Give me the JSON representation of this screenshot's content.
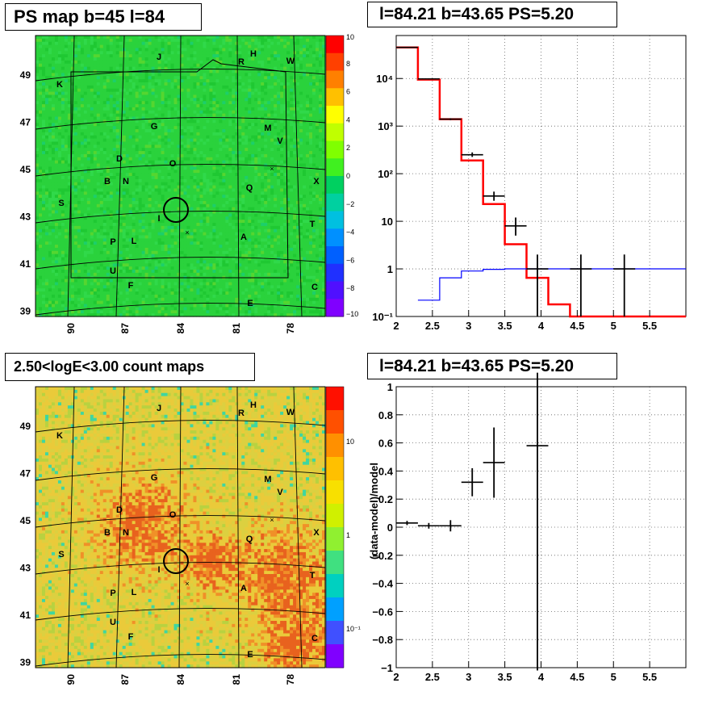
{
  "panels": {
    "ps_map": {
      "title": "PS map b=45 l=84"
    },
    "spectrum": {
      "title": "l=84.21 b=43.65 PS=5.20"
    },
    "count_map": {
      "title": "2.50<logE<3.00 count maps"
    },
    "residual": {
      "title": "l=84.21 b=43.65 PS=5.20"
    }
  },
  "chart_data": [
    {
      "type": "heatmap",
      "title": "PS map b=45 l=84",
      "x_ticks": [
        "90",
        "87",
        "84",
        "81",
        "78"
      ],
      "y_ticks": [
        "49",
        "47",
        "45",
        "43",
        "41",
        "39"
      ],
      "colorbar": {
        "ticks": [
          "10",
          "8",
          "6",
          "4",
          "2",
          "0",
          "−2",
          "−4",
          "−6",
          "−8",
          "−10"
        ],
        "range": [
          -10,
          10
        ],
        "dominant_color": "#2ad23c"
      },
      "source_labels": [
        "J",
        "R",
        "H",
        "W",
        "K",
        "G",
        "M",
        "V",
        "D",
        "O",
        "B",
        "N",
        "Q",
        "X",
        "S",
        "I",
        "T",
        "P",
        "L",
        "A",
        "U",
        "F",
        "C",
        "E"
      ],
      "marker": {
        "l": 84.21,
        "b": 43.65
      }
    },
    {
      "type": "line",
      "title": "l=84.21 b=43.65 PS=5.20",
      "x_scale": "linear",
      "y_scale": "log",
      "xlim": [
        2,
        6
      ],
      "ylim": [
        0.1,
        80000
      ],
      "x_ticks": [
        "2",
        "2.5",
        "3",
        "3.5",
        "4",
        "4.5",
        "5",
        "5.5"
      ],
      "y_ticks": [
        "10⁴",
        "10³",
        "10²",
        "10",
        "1",
        "10⁻¹"
      ],
      "grid": true,
      "series": [
        {
          "role": "model_total",
          "color": "#ff0000",
          "bins": [
            [
              2.0,
              2.3,
              45000
            ],
            [
              2.3,
              2.6,
              9500
            ],
            [
              2.6,
              2.9,
              1400
            ],
            [
              2.9,
              3.2,
              190
            ],
            [
              3.2,
              3.5,
              23
            ],
            [
              3.5,
              3.8,
              3.3
            ],
            [
              3.8,
              4.1,
              0.65
            ],
            [
              4.1,
              4.4,
              0.18
            ],
            [
              4.4,
              6.0,
              0.1
            ]
          ]
        },
        {
          "role": "model_background",
          "color": "#0000ff",
          "bins": [
            [
              2.3,
              2.6,
              0.22
            ],
            [
              2.6,
              2.9,
              0.65
            ],
            [
              2.9,
              3.2,
              0.9
            ],
            [
              3.2,
              3.5,
              0.98
            ],
            [
              3.5,
              6.0,
              1.0
            ]
          ]
        },
        {
          "role": "data",
          "color": "#000000",
          "points": [
            {
              "x": 2.15,
              "xerr": 0.15,
              "y": 45000,
              "ylo": 44000,
              "yhi": 46000
            },
            {
              "x": 2.45,
              "xerr": 0.15,
              "y": 9800,
              "ylo": 9500,
              "yhi": 10100
            },
            {
              "x": 2.75,
              "xerr": 0.15,
              "y": 1400,
              "ylo": 1340,
              "yhi": 1460
            },
            {
              "x": 3.05,
              "xerr": 0.15,
              "y": 250,
              "ylo": 225,
              "yhi": 280
            },
            {
              "x": 3.35,
              "xerr": 0.15,
              "y": 34,
              "ylo": 27,
              "yhi": 42
            },
            {
              "x": 3.65,
              "xerr": 0.15,
              "y": 8,
              "ylo": 5,
              "yhi": 12
            },
            {
              "x": 3.95,
              "xerr": 0.15,
              "y": 1,
              "ylo": 0.1,
              "yhi": 2
            },
            {
              "x": 4.55,
              "xerr": 0.15,
              "y": 1,
              "ylo": 0.1,
              "yhi": 2
            },
            {
              "x": 5.15,
              "xerr": 0.15,
              "y": 1,
              "ylo": 0.1,
              "yhi": 2
            }
          ]
        }
      ]
    },
    {
      "type": "heatmap",
      "title": "2.50<logE<3.00 count maps",
      "x_ticks": [
        "90",
        "87",
        "84",
        "81",
        "78"
      ],
      "y_ticks": [
        "49",
        "47",
        "45",
        "43",
        "41",
        "39"
      ],
      "colorbar": {
        "ticks": [
          "10",
          "1",
          "10⁻¹"
        ],
        "scale": "log",
        "dominant_color": "#eaca3a"
      },
      "source_labels": [
        "J",
        "R",
        "H",
        "W",
        "K",
        "G",
        "M",
        "V",
        "D",
        "O",
        "B",
        "N",
        "Q",
        "X",
        "S",
        "I",
        "T",
        "P",
        "L",
        "A",
        "U",
        "F",
        "C",
        "E"
      ],
      "marker": {
        "l": 84.21,
        "b": 43.65
      }
    },
    {
      "type": "scatter",
      "title": "l=84.21 b=43.65 PS=5.20",
      "ylabel": "(data-model)/model",
      "xlim": [
        2,
        6
      ],
      "ylim": [
        -1,
        1
      ],
      "x_ticks": [
        "2",
        "2.5",
        "3",
        "3.5",
        "4",
        "4.5",
        "5",
        "5.5"
      ],
      "y_ticks": [
        "1",
        "0.8",
        "0.6",
        "0.4",
        "0.2",
        "0",
        "−0.2",
        "−0.4",
        "−0.6",
        "−0.8",
        "−1"
      ],
      "grid": true,
      "points": [
        {
          "x": 2.15,
          "xerr": 0.15,
          "y": 0.03,
          "yerr": 0.015
        },
        {
          "x": 2.45,
          "xerr": 0.15,
          "y": 0.01,
          "yerr": 0.02
        },
        {
          "x": 2.75,
          "xerr": 0.15,
          "y": 0.01,
          "yerr": 0.04
        },
        {
          "x": 3.05,
          "xerr": 0.15,
          "y": 0.32,
          "yerr": 0.1
        },
        {
          "x": 3.35,
          "xerr": 0.15,
          "y": 0.46,
          "yerr": 0.25
        },
        {
          "x": 3.95,
          "xerr": 0.15,
          "y": 0.58,
          "yerr": 1.6
        }
      ]
    }
  ]
}
